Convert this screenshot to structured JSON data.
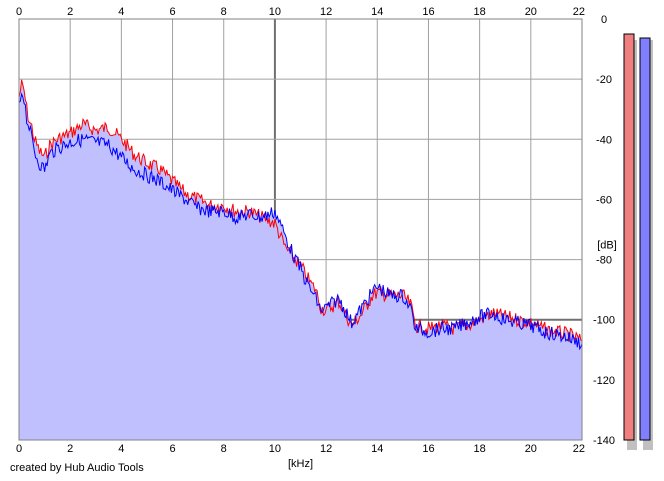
{
  "footer": {
    "credit": "created by Hub Audio Tools"
  },
  "chart_data": {
    "type": "line",
    "title": "",
    "xlabel": "[kHz]",
    "ylabel": "[dB]",
    "xlim": [
      0,
      22
    ],
    "ylim": [
      -140,
      0
    ],
    "x_ticks": [
      0,
      2,
      4,
      6,
      8,
      10,
      12,
      14,
      16,
      18,
      20,
      22
    ],
    "y_ticks": [
      0,
      -20,
      -40,
      -60,
      -80,
      -100,
      -120,
      -140
    ],
    "grid": true,
    "fill_color": "#c0c0ff",
    "series": [
      {
        "color": "#ff0000",
        "x": [
          0,
          0.1,
          0.2,
          0.3,
          0.4,
          0.5,
          0.6,
          0.8,
          1.0,
          1.2,
          1.5,
          2.0,
          2.5,
          3.0,
          3.5,
          4.0,
          4.5,
          5.0,
          5.5,
          6.0,
          6.5,
          7.0,
          7.5,
          8.0,
          8.5,
          9.0,
          9.5,
          10.0,
          10.2,
          10.4,
          10.6,
          10.8,
          11.0,
          11.2,
          11.4,
          11.6,
          11.8,
          12.0,
          12.5,
          13.0,
          13.4,
          13.8,
          14.0,
          14.5,
          15.0,
          15.3,
          15.5,
          16.0,
          16.5,
          17.0,
          17.5,
          18.0,
          18.5,
          19.0,
          19.5,
          20.0,
          20.5,
          21.0,
          21.5,
          22.0
        ],
        "y": [
          -26,
          -22,
          -24,
          -30,
          -34,
          -36,
          -40,
          -44,
          -46,
          -42,
          -40,
          -38,
          -35,
          -37,
          -36,
          -40,
          -45,
          -48,
          -50,
          -54,
          -58,
          -60,
          -62,
          -62,
          -64,
          -64,
          -66,
          -68,
          -72,
          -76,
          -78,
          -80,
          -82,
          -85,
          -88,
          -90,
          -96,
          -97,
          -94,
          -102,
          -98,
          -92,
          -91,
          -92,
          -92,
          -95,
          -102,
          -103,
          -102,
          -103,
          -102,
          -100,
          -98,
          -99,
          -100,
          -101,
          -103,
          -104,
          -105,
          -107
        ]
      },
      {
        "color": "#0000ff",
        "x": [
          0,
          0.1,
          0.2,
          0.3,
          0.4,
          0.5,
          0.6,
          0.8,
          1.0,
          1.2,
          1.5,
          2.0,
          2.5,
          3.0,
          3.5,
          4.0,
          4.5,
          5.0,
          5.5,
          6.0,
          6.5,
          7.0,
          7.5,
          8.0,
          8.5,
          9.0,
          9.5,
          10.0,
          10.2,
          10.4,
          10.6,
          10.8,
          11.0,
          11.2,
          11.4,
          11.6,
          11.8,
          12.0,
          12.5,
          13.0,
          13.4,
          13.8,
          14.0,
          14.5,
          15.0,
          15.3,
          15.5,
          16.0,
          16.5,
          17.0,
          17.5,
          18.0,
          18.5,
          19.0,
          19.5,
          20.0,
          20.5,
          21.0,
          21.5,
          22.0
        ],
        "y": [
          -30,
          -24,
          -26,
          -33,
          -36,
          -40,
          -44,
          -48,
          -50,
          -45,
          -43,
          -41,
          -40,
          -41,
          -42,
          -46,
          -50,
          -52,
          -54,
          -57,
          -60,
          -63,
          -64,
          -64,
          -66,
          -65,
          -66,
          -64,
          -68,
          -72,
          -76,
          -80,
          -83,
          -87,
          -90,
          -93,
          -97,
          -96,
          -93,
          -101,
          -96,
          -91,
          -89,
          -92,
          -92,
          -96,
          -103,
          -104,
          -103,
          -103,
          -101,
          -99,
          -98,
          -100,
          -101,
          -102,
          -104,
          -105,
          -106,
          -108
        ]
      }
    ],
    "meter_colors": [
      "#f08080",
      "#8080ff"
    ]
  }
}
